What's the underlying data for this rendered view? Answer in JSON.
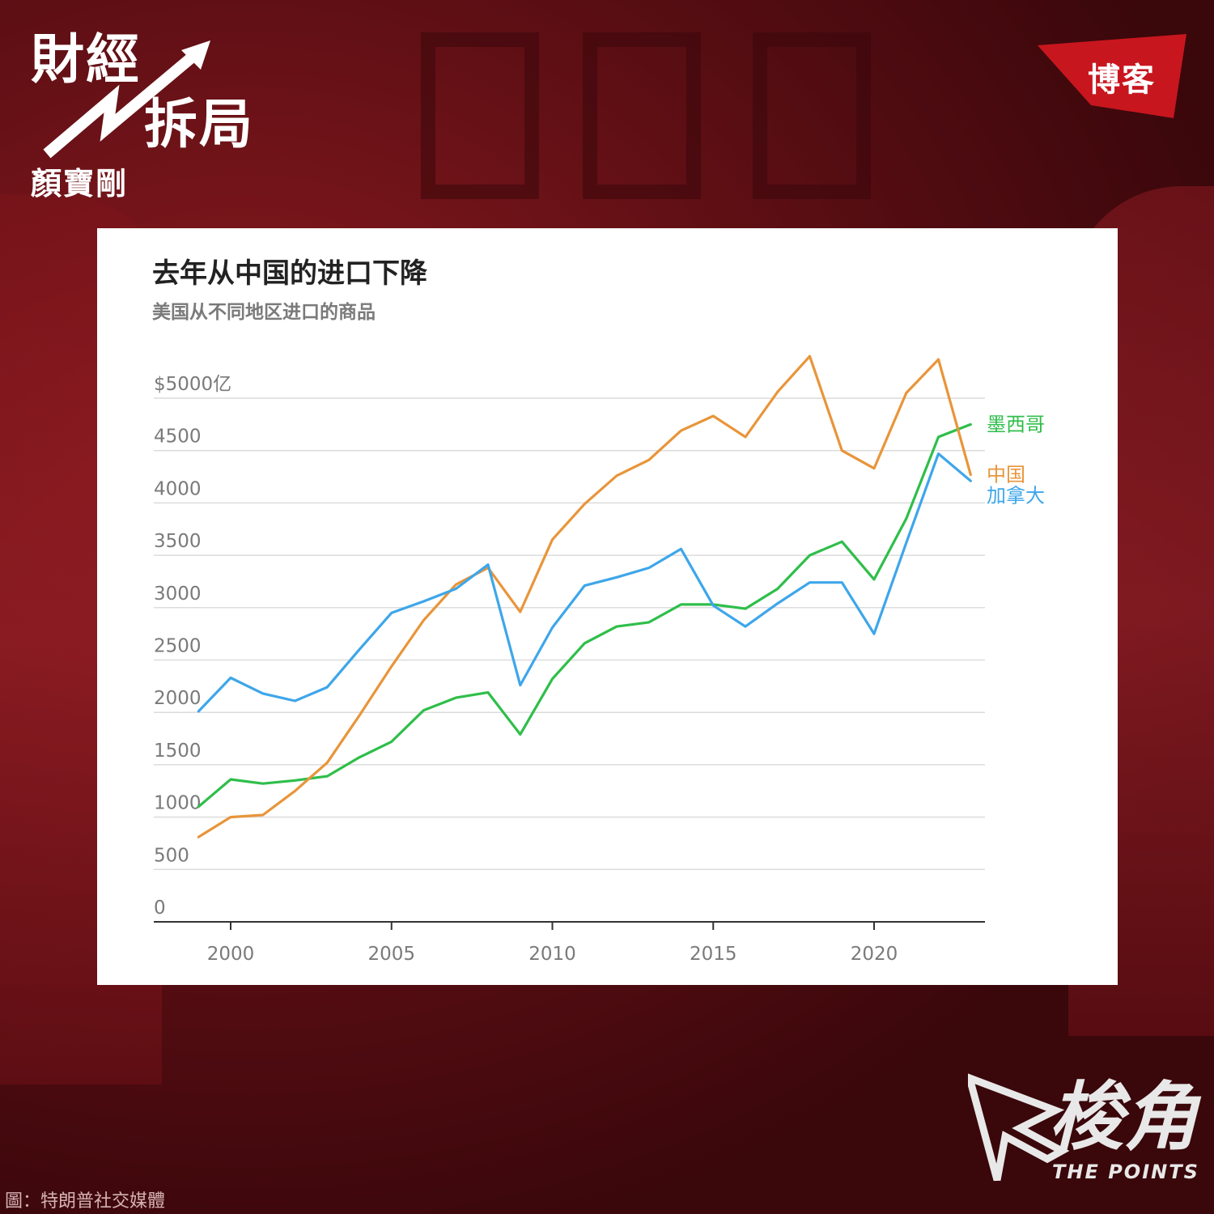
{
  "brand": {
    "line1": "財經",
    "line2": "拆局",
    "author": "顏寶剛"
  },
  "tag": "博客",
  "credit": "圖：特朗普社交媒體",
  "logo": {
    "main": "梭角",
    "sub": "THE POINTS"
  },
  "colors": {
    "mexico": "#2fbe4a",
    "china": "#e8953a",
    "canada": "#3ea6ea"
  },
  "chart_data": {
    "type": "line",
    "title": "去年从中国的进口下降",
    "subtitle": "美国从不同地区进口的商品",
    "y_unit_label": "$5000亿",
    "y_ticks": [
      0,
      500,
      1000,
      1500,
      2000,
      2500,
      3000,
      3500,
      4000,
      4500,
      5000
    ],
    "y_tick_labels": [
      "0",
      "500",
      "1000",
      "1500",
      "2000",
      "2500",
      "3000",
      "3500",
      "4000",
      "4500",
      "$5000亿"
    ],
    "ylim": [
      0,
      5000
    ],
    "x_ticks": [
      2000,
      2005,
      2010,
      2015,
      2020
    ],
    "x_tick_labels": [
      "2000",
      "2005",
      "2010",
      "2015",
      "2020"
    ],
    "xlim": [
      1999,
      2023
    ],
    "x": [
      1999,
      2000,
      2001,
      2002,
      2003,
      2004,
      2005,
      2006,
      2007,
      2008,
      2009,
      2010,
      2011,
      2012,
      2013,
      2014,
      2015,
      2016,
      2017,
      2018,
      2019,
      2020,
      2021,
      2022,
      2023
    ],
    "grid": true,
    "legend_placement": "right",
    "series": [
      {
        "name": "墨西哥",
        "color_key": "mexico",
        "values": [
          1100,
          1360,
          1320,
          1350,
          1390,
          1570,
          1720,
          2020,
          2140,
          2190,
          1790,
          2320,
          2660,
          2820,
          2860,
          3030,
          3030,
          2990,
          3180,
          3500,
          3630,
          3270,
          3850,
          4630,
          4750
        ]
      },
      {
        "name": "中国",
        "color_key": "china",
        "values": [
          810,
          1000,
          1020,
          1250,
          1520,
          1970,
          2440,
          2880,
          3220,
          3380,
          2960,
          3650,
          3990,
          4260,
          4410,
          4690,
          4830,
          4630,
          5060,
          5400,
          4500,
          4330,
          5050,
          5370,
          4270
        ]
      },
      {
        "name": "加拿大",
        "color_key": "canada",
        "values": [
          2010,
          2330,
          2180,
          2110,
          2240,
          2600,
          2950,
          3060,
          3180,
          3410,
          2260,
          2810,
          3210,
          3290,
          3380,
          3560,
          3020,
          2820,
          3040,
          3240,
          3240,
          2750,
          3620,
          4470,
          4210
        ]
      }
    ]
  }
}
